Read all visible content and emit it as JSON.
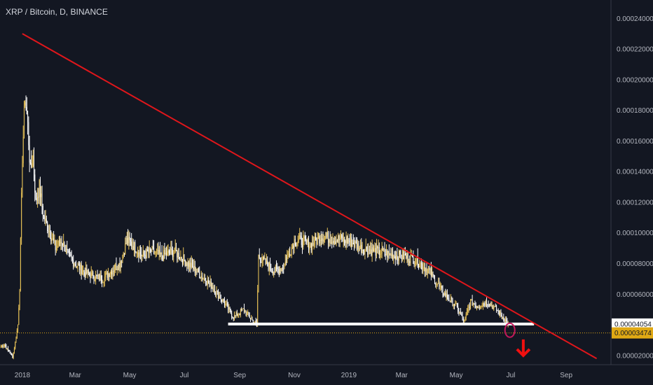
{
  "chart_data": {
    "type": "line",
    "title": "XRP / Bitcoin, D, BINANCE",
    "xlabel": "",
    "ylabel": "",
    "x_ticks": [
      "2018",
      "Mar",
      "May",
      "Jul",
      "Sep",
      "Nov",
      "2019",
      "Mar",
      "May",
      "Jul",
      "Sep"
    ],
    "y_ticks": [
      "0.00002000",
      "0.00004000",
      "0.00006000",
      "0.00008000",
      "0.00010000",
      "0.00012000",
      "0.00014000",
      "0.00016000",
      "0.00018000",
      "0.00020000",
      "0.00022000",
      "0.00024000"
    ],
    "ylim": [
      1.4e-05,
      0.000252
    ],
    "xlim": [
      "2017-12-07",
      "2019-10-21"
    ],
    "grid": false,
    "legend": "none",
    "series": [
      {
        "style": "candlestick",
        "x": [
          "2017-12-08",
          "2017-12-12",
          "2017-12-15",
          "2017-12-18",
          "2017-12-21",
          "2017-12-24",
          "2017-12-27",
          "2017-12-29",
          "2018-01-01",
          "2018-01-04",
          "2018-01-07",
          "2018-01-10",
          "2018-01-13",
          "2018-01-16",
          "2018-01-20",
          "2018-01-25",
          "2018-02-01",
          "2018-02-07",
          "2018-02-14",
          "2018-02-21",
          "2018-03-01",
          "2018-03-10",
          "2018-03-20",
          "2018-04-01",
          "2018-04-10",
          "2018-04-20",
          "2018-04-28",
          "2018-05-05",
          "2018-05-15",
          "2018-05-25",
          "2018-06-05",
          "2018-06-20",
          "2018-07-01",
          "2018-07-15",
          "2018-08-01",
          "2018-08-14",
          "2018-08-25",
          "2018-09-05",
          "2018-09-15",
          "2018-09-20",
          "2018-09-22",
          "2018-09-30",
          "2018-10-10",
          "2018-10-20",
          "2018-11-01",
          "2018-11-08",
          "2018-11-20",
          "2018-12-01",
          "2018-12-15",
          "2019-01-01",
          "2019-01-15",
          "2019-02-01",
          "2019-02-15",
          "2019-03-01",
          "2019-03-15",
          "2019-04-01",
          "2019-04-15",
          "2019-05-01",
          "2019-05-10",
          "2019-05-17",
          "2019-05-25",
          "2019-06-05",
          "2019-06-15",
          "2019-06-25",
          "2019-06-28"
        ],
        "values": [
          2.6e-05,
          2.7e-05,
          2.4e-05,
          2.2e-05,
          1.9e-05,
          2.8e-05,
          4e-05,
          6.5e-05,
          0.00015,
          0.00019,
          0.00017,
          0.00014,
          0.00015,
          0.00012,
          0.00013,
          0.00011,
          0.0001,
          9e-05,
          9.5e-05,
          8.5e-05,
          8e-05,
          7.5e-05,
          7.2e-05,
          7e-05,
          7.5e-05,
          8e-05,
          9.5e-05,
          9.2e-05,
          8.5e-05,
          8.8e-05,
          8.5e-05,
          8.8e-05,
          8.2e-05,
          7.5e-05,
          6.5e-05,
          5.5e-05,
          4.5e-05,
          5e-05,
          4.3e-05,
          4e-05,
          8.5e-05,
          8e-05,
          7.5e-05,
          7.8e-05,
          9.5e-05,
          9.5e-05,
          9.2e-05,
          9.8e-05,
          9.6e-05,
          9.5e-05,
          9e-05,
          8.8e-05,
          8.6e-05,
          8.5e-05,
          8.3e-05,
          7.5e-05,
          6.2e-05,
          5.2e-05,
          4.2e-05,
          5.5e-05,
          5.2e-05,
          5.5e-05,
          5e-05,
          4.3e-05,
          4e-05
        ]
      }
    ],
    "annotations": {
      "trendline": {
        "x1": "2018-01-01",
        "y1": 0.00023,
        "x2": "2019-10-05",
        "y2": 1.8e-05,
        "color": "#e0161b"
      },
      "support_line": {
        "x1": "2018-08-19",
        "x2": "2019-07-27",
        "y": 4.054e-05,
        "color": "#ffffff"
      },
      "current_price_line": {
        "y": 3.474e-05,
        "color": "#e0a914"
      },
      "breakdown_marker": "circle",
      "down_arrow": "arrow-down-icon",
      "highlighted_price_label": "0.00004054",
      "current_price_label": "0.00003474"
    },
    "colors": {
      "background": "#131722",
      "up": "#e8c257",
      "down": "#ffffff",
      "trendline": "#e0161b",
      "support": "#ffffff",
      "current_price": "#e0a914",
      "axis_text": "#b2b5be"
    }
  }
}
